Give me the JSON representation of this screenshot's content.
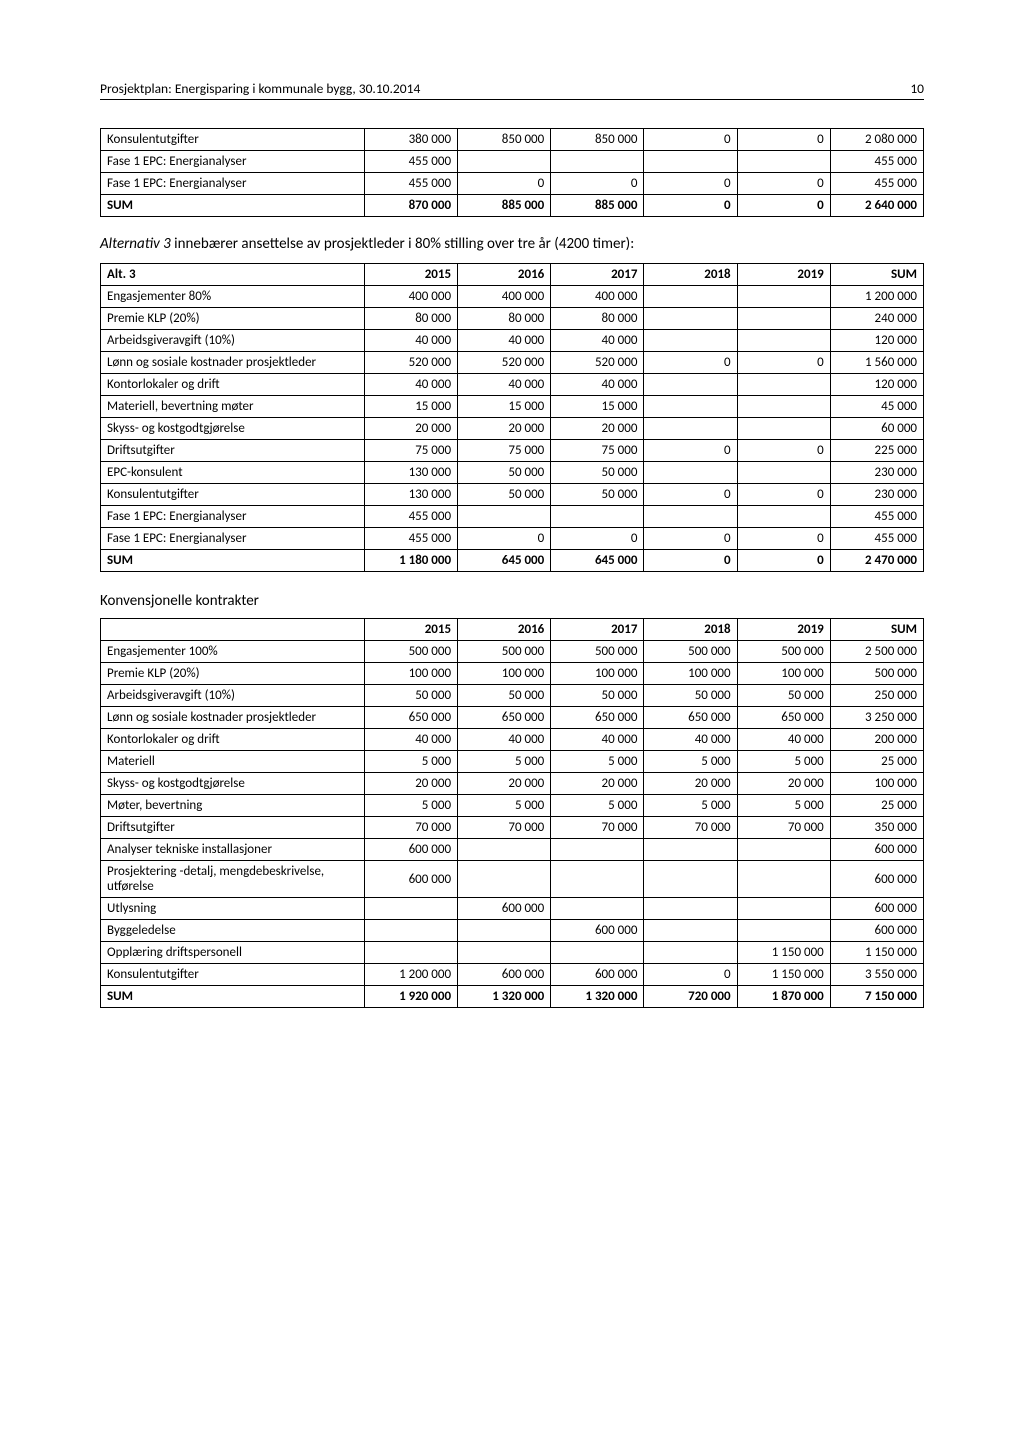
{
  "header": {
    "title": "Prosjektplan: Energisparing i kommunale bygg, 30.10.2014",
    "page": "10"
  },
  "table1": {
    "rows": [
      {
        "label": "Konsulentutgifter",
        "c": [
          "380 000",
          "850 000",
          "850 000",
          "0",
          "0",
          "2 080 000"
        ],
        "bold": false
      },
      {
        "label": "Fase 1 EPC: Energianalyser",
        "c": [
          "455 000",
          "",
          "",
          "",
          "",
          "455 000"
        ],
        "bold": false
      },
      {
        "label": "Fase 1 EPC: Energianalyser",
        "c": [
          "455 000",
          "0",
          "0",
          "0",
          "0",
          "455 000"
        ],
        "bold": false
      },
      {
        "label": "SUM",
        "c": [
          "870 000",
          "885 000",
          "885 000",
          "0",
          "0",
          "2 640 000"
        ],
        "bold": true
      }
    ]
  },
  "alt3_intro_prefix": "Alternativ 3",
  "alt3_intro_rest": " innebærer ansettelse av prosjektleder i 80% stilling over tre år (4200 timer):",
  "table2": {
    "headers": [
      "Alt. 3",
      "2015",
      "2016",
      "2017",
      "2018",
      "2019",
      "SUM"
    ],
    "rows": [
      {
        "label": "Engasjementer 80%",
        "c": [
          "400 000",
          "400 000",
          "400 000",
          "",
          "",
          "1 200 000"
        ],
        "bold": false
      },
      {
        "label": "Premie KLP (20%)",
        "c": [
          "80 000",
          "80 000",
          "80 000",
          "",
          "",
          "240 000"
        ],
        "bold": false
      },
      {
        "label": "Arbeidsgiveravgift (10%)",
        "c": [
          "40 000",
          "40 000",
          "40 000",
          "",
          "",
          "120 000"
        ],
        "bold": false
      },
      {
        "label": "Lønn og sosiale kostnader prosjektleder",
        "c": [
          "520 000",
          "520 000",
          "520 000",
          "0",
          "0",
          "1 560 000"
        ],
        "bold": false
      },
      {
        "label": "Kontorlokaler og drift",
        "c": [
          "40 000",
          "40 000",
          "40 000",
          "",
          "",
          "120 000"
        ],
        "bold": false
      },
      {
        "label": "Materiell, bevertning møter",
        "c": [
          "15 000",
          "15 000",
          "15 000",
          "",
          "",
          "45 000"
        ],
        "bold": false
      },
      {
        "label": "Skyss- og kostgodtgjørelse",
        "c": [
          "20 000",
          "20 000",
          "20 000",
          "",
          "",
          "60 000"
        ],
        "bold": false
      },
      {
        "label": "Driftsutgifter",
        "c": [
          "75 000",
          "75 000",
          "75 000",
          "0",
          "0",
          "225 000"
        ],
        "bold": false
      },
      {
        "label": "EPC-konsulent",
        "c": [
          "130 000",
          "50 000",
          "50 000",
          "",
          "",
          "230 000"
        ],
        "bold": false
      },
      {
        "label": "Konsulentutgifter",
        "c": [
          "130 000",
          "50 000",
          "50 000",
          "0",
          "0",
          "230 000"
        ],
        "bold": false
      },
      {
        "label": "Fase 1 EPC: Energianalyser",
        "c": [
          "455 000",
          "",
          "",
          "",
          "",
          "455 000"
        ],
        "bold": false
      },
      {
        "label": "Fase 1 EPC: Energianalyser",
        "c": [
          "455 000",
          "0",
          "0",
          "0",
          "0",
          "455 000"
        ],
        "bold": false
      },
      {
        "label": "SUM",
        "c": [
          "1 180 000",
          "645 000",
          "645 000",
          "0",
          "0",
          "2 470 000"
        ],
        "bold": true
      }
    ]
  },
  "konv_title": "Konvensjonelle kontrakter",
  "table3": {
    "headers": [
      "",
      "2015",
      "2016",
      "2017",
      "2018",
      "2019",
      "SUM"
    ],
    "rows": [
      {
        "label": "Engasjementer 100%",
        "c": [
          "500 000",
          "500 000",
          "500 000",
          "500 000",
          "500 000",
          "2 500 000"
        ],
        "bold": false
      },
      {
        "label": "Premie KLP (20%)",
        "c": [
          "100 000",
          "100 000",
          "100 000",
          "100 000",
          "100 000",
          "500 000"
        ],
        "bold": false
      },
      {
        "label": "Arbeidsgiveravgift (10%)",
        "c": [
          "50 000",
          "50 000",
          "50 000",
          "50 000",
          "50 000",
          "250 000"
        ],
        "bold": false
      },
      {
        "label": "Lønn og sosiale kostnader prosjektleder",
        "c": [
          "650 000",
          "650 000",
          "650 000",
          "650 000",
          "650 000",
          "3 250 000"
        ],
        "bold": false
      },
      {
        "label": "Kontorlokaler og drift",
        "c": [
          "40 000",
          "40 000",
          "40 000",
          "40 000",
          "40 000",
          "200 000"
        ],
        "bold": false
      },
      {
        "label": "Materiell",
        "c": [
          "5 000",
          "5 000",
          "5 000",
          "5 000",
          "5 000",
          "25 000"
        ],
        "bold": false
      },
      {
        "label": "Skyss- og kostgodtgjørelse",
        "c": [
          "20 000",
          "20 000",
          "20 000",
          "20 000",
          "20 000",
          "100 000"
        ],
        "bold": false
      },
      {
        "label": "Møter, bevertning",
        "c": [
          "5 000",
          "5 000",
          "5 000",
          "5 000",
          "5 000",
          "25 000"
        ],
        "bold": false
      },
      {
        "label": "Driftsutgifter",
        "c": [
          "70 000",
          "70 000",
          "70 000",
          "70 000",
          "70 000",
          "350 000"
        ],
        "bold": false
      },
      {
        "label": "Analyser tekniske installasjoner",
        "c": [
          "600 000",
          "",
          "",
          "",
          "",
          "600 000"
        ],
        "bold": false
      },
      {
        "label": "Prosjektering -detalj, mengdebeskrivelse, utførelse",
        "c": [
          "600 000",
          "",
          "",
          "",
          "",
          "600 000"
        ],
        "bold": false
      },
      {
        "label": "Utlysning",
        "c": [
          "",
          "600 000",
          "",
          "",
          "",
          "600 000"
        ],
        "bold": false
      },
      {
        "label": "Byggeledelse",
        "c": [
          "",
          "",
          "600 000",
          "",
          "",
          "600 000"
        ],
        "bold": false
      },
      {
        "label": "Opplæring driftspersonell",
        "c": [
          "",
          "",
          "",
          "",
          "1 150 000",
          "1 150 000"
        ],
        "bold": false
      },
      {
        "label": "Konsulentutgifter",
        "c": [
          "1 200 000",
          "600 000",
          "600 000",
          "0",
          "1 150 000",
          "3 550 000"
        ],
        "bold": false
      },
      {
        "label": "SUM",
        "c": [
          "1 920 000",
          "1 320 000",
          "1 320 000",
          "720 000",
          "1 870 000",
          "7 150 000"
        ],
        "bold": true
      }
    ]
  }
}
